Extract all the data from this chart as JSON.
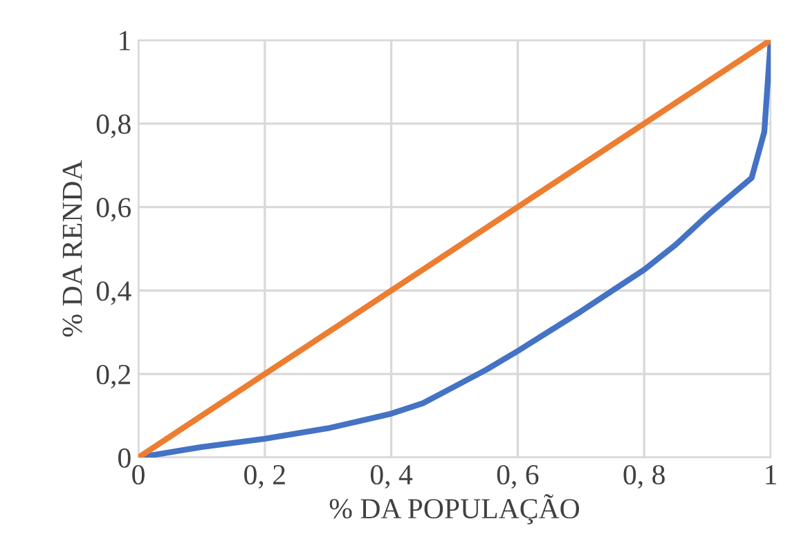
{
  "chart_data": {
    "type": "line",
    "xlabel": "% DA POPULAÇÃO",
    "ylabel": "% DA RENDA",
    "xlim": [
      0,
      1
    ],
    "ylim": [
      0,
      1
    ],
    "xticks": [
      0,
      {
        "value": 0.2,
        "label": "0, 2"
      },
      {
        "value": 0.4,
        "label": "0, 4"
      },
      {
        "value": 0.6,
        "label": "0, 6"
      },
      {
        "value": 0.8,
        "label": "0, 8"
      },
      1
    ],
    "yticks": [
      0,
      {
        "value": 0.2,
        "label": "0,2"
      },
      {
        "value": 0.4,
        "label": "0,4"
      },
      {
        "value": 0.6,
        "label": "0,6"
      },
      {
        "value": 0.8,
        "label": "0,8"
      },
      1
    ],
    "grid": true,
    "marker": "none",
    "line_style": "solid",
    "series": [
      {
        "color": "#4472c4",
        "x": [
          0,
          0.1,
          0.2,
          0.3,
          0.4,
          0.45,
          0.5,
          0.55,
          0.6,
          0.7,
          0.8,
          0.85,
          0.9,
          0.97,
          0.99,
          1
        ],
        "values": [
          0,
          0.025,
          0.045,
          0.07,
          0.105,
          0.13,
          0.17,
          0.21,
          0.255,
          0.35,
          0.45,
          0.51,
          0.58,
          0.67,
          0.78,
          1
        ]
      },
      {
        "color": "#ed7d31",
        "x": [
          0,
          1
        ],
        "values": [
          0,
          1
        ]
      }
    ]
  }
}
